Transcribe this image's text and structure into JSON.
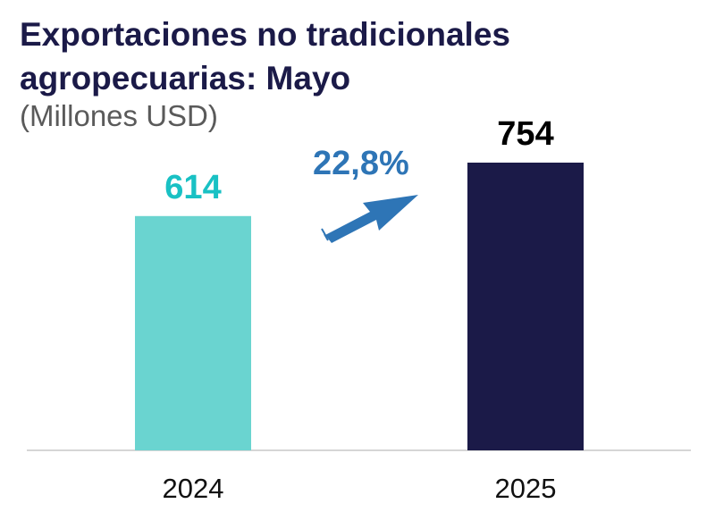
{
  "header": {
    "title_line1": "Exportaciones no tradicionales",
    "title_line2": "agropecuarias: Mayo",
    "subtitle": "(Millones USD)"
  },
  "growth": {
    "label": "22,8%",
    "color": "#2e75b6"
  },
  "chart_data": {
    "type": "bar",
    "title": "Exportaciones no tradicionales agropecuarias: Mayo",
    "subtitle": "(Millones USD)",
    "xlabel": "",
    "ylabel": "",
    "categories": [
      "2024",
      "2025"
    ],
    "values": [
      614,
      754
    ],
    "value_labels": [
      "614",
      "754"
    ],
    "colors": [
      "#6ad4d0",
      "#1b1a48"
    ],
    "label_colors": [
      "#19c1c4",
      "#000000"
    ],
    "ylim": [
      0,
      1000
    ],
    "grid": false,
    "legend": "none"
  }
}
